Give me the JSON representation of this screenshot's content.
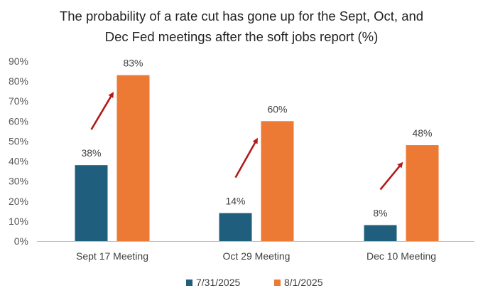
{
  "chart_data": {
    "type": "bar",
    "title_lines": [
      "The probability of a rate cut has gone up for the Sept, Oct, and",
      "Dec Fed meetings after the soft jobs report (%)"
    ],
    "categories": [
      "Sept 17 Meeting",
      "Oct 29 Meeting",
      "Dec 10 Meeting"
    ],
    "series": [
      {
        "name": "7/31/2025",
        "values": [
          38,
          14,
          8
        ],
        "labels": [
          "38%",
          "14%",
          "8%"
        ],
        "color": "#1f5f7d"
      },
      {
        "name": "8/1/2025",
        "values": [
          83,
          60,
          48
        ],
        "labels": [
          "83%",
          "60%",
          "48%"
        ],
        "color": "#ec7a34"
      }
    ],
    "y_ticks": [
      0,
      10,
      20,
      30,
      40,
      50,
      60,
      70,
      80,
      90
    ],
    "y_tick_labels": [
      "0%",
      "10%",
      "20%",
      "30%",
      "40%",
      "50%",
      "60%",
      "70%",
      "80%",
      "90%"
    ],
    "ylim": [
      0,
      90
    ],
    "xlabel": "",
    "ylabel": "",
    "grid": false,
    "legend": "bottom-center",
    "annotations": {
      "arrows": "up-right red arrows beside each category",
      "arrow_color": "#b31b1b"
    },
    "axis_color": "#bfbfbf"
  }
}
